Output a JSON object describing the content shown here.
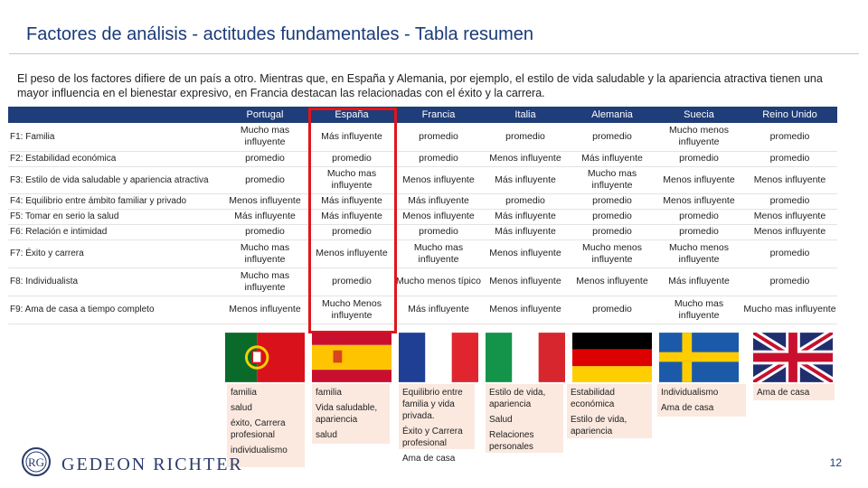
{
  "slide": {
    "title": "Factores de análisis - actitudes fundamentales - Tabla resumen",
    "intro": "El peso de los factores difiere de un país a otro. Mientras que, en España y Alemania, por ejemplo, el estilo de vida saludable y la apariencia atractiva tienen una mayor influencia en el bienestar expresivo, en Francia destacan las relacionadas con el éxito y la carrera.",
    "page_number": "12",
    "logo_text": "GEDEON RICHTER",
    "logo_mark": "RG"
  },
  "table": {
    "columns": [
      "Portugal",
      "España",
      "Francia",
      "Italia",
      "Alemania",
      "Suecia",
      "Reino Unido"
    ],
    "rows": [
      {
        "factor": "F1: Familia",
        "values": [
          "Mucho mas influyente",
          "Más influyente",
          "promedio",
          "promedio",
          "promedio",
          "Mucho menos influyente",
          "promedio"
        ]
      },
      {
        "factor": "F2: Estabilidad económica",
        "values": [
          "promedio",
          "promedio",
          "promedio",
          "Menos influyente",
          "Más influyente",
          "promedio",
          "promedio"
        ]
      },
      {
        "factor": "F3: Estilo de vida saludable y apariencia atractiva",
        "values": [
          "promedio",
          "Mucho mas influyente",
          "Menos influyente",
          "Más influyente",
          "Mucho mas influyente",
          "Menos influyente",
          "Menos influyente"
        ]
      },
      {
        "factor": "F4: Equilibrio entre ámbito familiar y privado",
        "values": [
          "Menos influyente",
          "Más influyente",
          "Más influyente",
          "promedio",
          "promedio",
          "Menos influyente",
          "promedio"
        ]
      },
      {
        "factor": "F5: Tomar en serio la salud",
        "values": [
          "Más influyente",
          "Más influyente",
          "Menos influyente",
          "Más influyente",
          "promedio",
          "promedio",
          "Menos influyente"
        ]
      },
      {
        "factor": "F6: Relación e intimidad",
        "values": [
          "promedio",
          "promedio",
          "promedio",
          "Más influyente",
          "promedio",
          "promedio",
          "Menos influyente"
        ]
      },
      {
        "factor": "F7: Éxito y carrera",
        "values": [
          "Mucho mas influyente",
          "Menos influyente",
          "Mucho mas influyente",
          "Menos influyente",
          "Mucho menos influyente",
          "Mucho menos influyente",
          "promedio"
        ]
      },
      {
        "factor": "F8: Individualista",
        "values": [
          "Mucho mas influyente",
          "promedio",
          "Mucho menos típico",
          "Menos influyente",
          "Menos influyente",
          "Más influyente",
          "promedio"
        ]
      },
      {
        "factor": "F9: Ama de casa a tiempo completo",
        "values": [
          "Menos influyente",
          "Mucho Menos influyente",
          "Más influyente",
          "Menos influyente",
          "promedio",
          "Mucho mas influyente",
          "Mucho mas influyente"
        ]
      }
    ]
  },
  "highlights": {
    "portugal": [
      "familia",
      "salud",
      "éxito, Carrera profesional",
      "individualismo"
    ],
    "espana": [
      "familia",
      "Vida saludable, apariencia",
      "salud"
    ],
    "francia": [
      "Equilibrio entre familia y vida privada.",
      "Éxito y Carrera profesional",
      "Ama de casa"
    ],
    "italia": [
      "Estilo de vida, apariencia",
      "Salud",
      "Relaciones personales"
    ],
    "alemania": [
      "Estabilidad económica",
      "Estilo de vida, apariencia"
    ],
    "suecia": [
      "Individualismo",
      "Ama de casa"
    ],
    "reino_unido": [
      "Ama de casa"
    ]
  },
  "colors": {
    "title": "#1a3a7a",
    "header_bg": "#1f3d78",
    "highlight_border": "#e0161b",
    "note_box": "#fbe9df"
  },
  "flags": [
    "portugal-flag-icon",
    "spain-flag-icon",
    "france-flag-icon",
    "italy-flag-icon",
    "germany-flag-icon",
    "sweden-flag-icon",
    "uk-flag-icon"
  ]
}
